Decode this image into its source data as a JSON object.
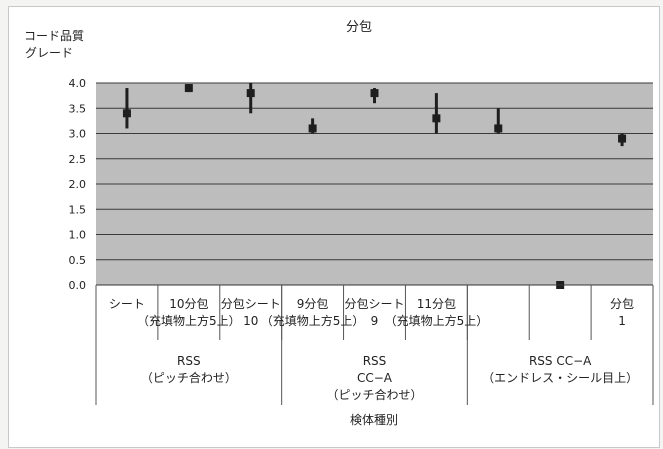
{
  "chart_data": {
    "type": "scatter",
    "title": "分包",
    "ylabel": [
      "コード品質",
      "グレード"
    ],
    "xlabel": "検体種別",
    "ylim": [
      0,
      4
    ],
    "yticks": [
      "0.0",
      "0.5",
      "1.0",
      "1.5",
      "2.0",
      "2.5",
      "3.0",
      "3.5",
      "4.0"
    ],
    "grid": true,
    "plot_background": "#bdbdbd",
    "marker_color": "#1e1e1e",
    "groups": [
      {
        "name_lines": [
          "RSS",
          "（ピッチ合わせ）"
        ],
        "categories": [
          {
            "lines": [
              "シート"
            ],
            "value": 3.4,
            "low": 3.1,
            "high": 3.9
          },
          {
            "lines": [
              "10分包",
              "（充填物上方5上）"
            ],
            "value": 3.9,
            "low": 3.82,
            "high": 3.98
          },
          {
            "lines": [
              "分包シート",
              "10"
            ],
            "value": 3.8,
            "low": 3.4,
            "high": 4.0
          }
        ]
      },
      {
        "name_lines": [
          "RSS",
          "CC−A",
          "（ピッチ合わせ）"
        ],
        "categories": [
          {
            "lines": [
              "9分包",
              "（充填物上方5上）"
            ],
            "value": 3.1,
            "low": 3.0,
            "high": 3.3
          },
          {
            "lines": [
              "分包シート",
              "9"
            ],
            "value": 3.8,
            "low": 3.6,
            "high": 3.9
          },
          {
            "lines": [
              "11分包",
              "（充填物上方5上）"
            ],
            "value": 3.3,
            "low": 3.0,
            "high": 3.8
          }
        ]
      },
      {
        "name_lines": [
          "RSS CC−A",
          "（エンドレス・シール目上）"
        ],
        "categories": [
          {
            "lines": [],
            "value": 3.1,
            "low": 3.0,
            "high": 3.5
          },
          {
            "lines": [],
            "value": 0.0,
            "low": 0.0,
            "high": 0.0
          },
          {
            "lines": [
              "分包",
              "1"
            ],
            "value": 2.9,
            "low": 2.75,
            "high": 3.0
          }
        ]
      }
    ]
  }
}
